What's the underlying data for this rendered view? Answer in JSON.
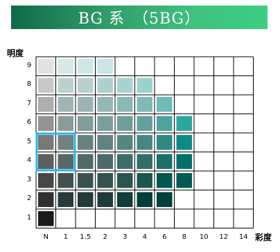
{
  "title": "BG 系　（5BG）",
  "chart_data": {
    "type": "heatmap",
    "y_axis_label": "明度",
    "x_axis_label": "彩度",
    "x_ticks": [
      "N",
      "1",
      "1.5",
      "2",
      "3",
      "4",
      "6",
      "8",
      "10",
      "12",
      "14"
    ],
    "y_ticks": [
      "1",
      "2",
      "3",
      "4",
      "5",
      "6",
      "7",
      "8",
      "9"
    ],
    "highlight": {
      "x_ticks": [
        "N",
        "1"
      ],
      "y_ticks": [
        "4",
        "5"
      ],
      "color": "#27b3e8"
    },
    "swatches": [
      {
        "value": "9",
        "colors": [
          "#e1e1e1",
          "#d6e8e8",
          "#cfe7e7",
          "#c9e6e6"
        ]
      },
      {
        "value": "8",
        "colors": [
          "#c8c8c8",
          "#bdd0d0",
          "#b6d0d0",
          "#afd0d0",
          "#a6d2d0",
          "#9bd2cf"
        ]
      },
      {
        "value": "7",
        "colors": [
          "#aeaeae",
          "#a2b5b5",
          "#9bb5b4",
          "#94b6b5",
          "#89b8b5",
          "#7fbab6",
          "#6cbdb6"
        ]
      },
      {
        "value": "6",
        "colors": [
          "#929292",
          "#889c9b",
          "#819c9a",
          "#7b9e9c",
          "#709f9b",
          "#63a19d",
          "#4fa39d",
          "#2ea69e"
        ]
      },
      {
        "value": "5",
        "colors": [
          "#787878",
          "#6d8281",
          "#678381",
          "#608381",
          "#568681",
          "#478782",
          "#2e8982",
          "#0d8b83"
        ]
      },
      {
        "value": "4",
        "colors": [
          "#5f5f5f",
          "#566968",
          "#4f6a68",
          "#4a6b69",
          "#3e6c69",
          "#326e69",
          "#1a7069",
          "#007169"
        ]
      },
      {
        "value": "3",
        "colors": [
          "#474747",
          "#3f5150",
          "#395250",
          "#335250",
          "#295450",
          "#1b5651",
          "#005851",
          "#005a51"
        ]
      },
      {
        "value": "2",
        "colors": [
          "#303030",
          "#283a39",
          "#223b39",
          "#1d3b39",
          "#123d39",
          "#003f3a",
          "#00403a"
        ]
      },
      {
        "value": "1",
        "colors": [
          "#1b1b1b"
        ]
      }
    ]
  }
}
